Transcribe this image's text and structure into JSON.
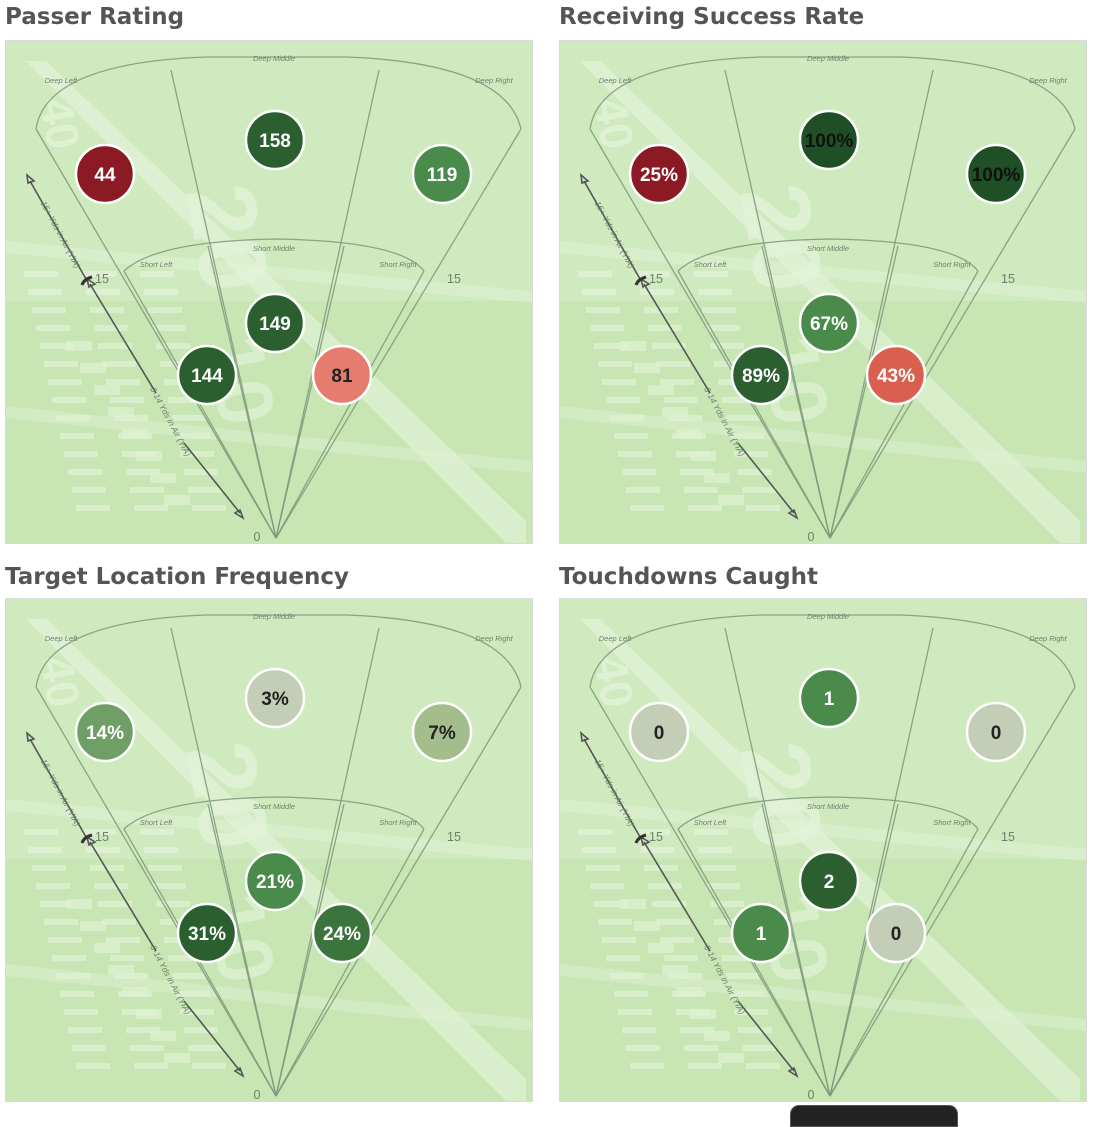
{
  "panels": [
    {
      "title": "Passer Rating",
      "zones": [
        {
          "zone": "Deep Left",
          "value": "44",
          "color": "#8b1a24",
          "text_color": "#ffffff"
        },
        {
          "zone": "Deep Middle",
          "value": "158",
          "color": "#2b5f2f",
          "text_color": "#ffffff"
        },
        {
          "zone": "Deep Right",
          "value": "119",
          "color": "#4a8a4a",
          "text_color": "#ffffff"
        },
        {
          "zone": "Short Left",
          "value": "144",
          "color": "#2b5f2f",
          "text_color": "#ffffff"
        },
        {
          "zone": "Short Middle",
          "value": "149",
          "color": "#2b5f2f",
          "text_color": "#ffffff"
        },
        {
          "zone": "Short Right",
          "value": "81",
          "color": "#e57c6e",
          "text_color": "#222222"
        }
      ]
    },
    {
      "title": "Receiving Success Rate",
      "zones": [
        {
          "zone": "Deep Left",
          "value": "25%",
          "color": "#8b1a24",
          "text_color": "#ffffff"
        },
        {
          "zone": "Deep Middle",
          "value": "100%",
          "color": "#1f4f24",
          "text_color": "#111111"
        },
        {
          "zone": "Deep Right",
          "value": "100%",
          "color": "#1f4f24",
          "text_color": "#111111"
        },
        {
          "zone": "Short Left",
          "value": "89%",
          "color": "#2b5f2f",
          "text_color": "#ffffff"
        },
        {
          "zone": "Short Middle",
          "value": "67%",
          "color": "#4a8a4a",
          "text_color": "#ffffff"
        },
        {
          "zone": "Short Right",
          "value": "43%",
          "color": "#d9604f",
          "text_color": "#ffffff"
        }
      ]
    },
    {
      "title": "Target Location Frequency",
      "zones": [
        {
          "zone": "Deep Left",
          "value": "14%",
          "color": "#6f9e66",
          "text_color": "#ffffff"
        },
        {
          "zone": "Deep Middle",
          "value": "3%",
          "color": "#c4cdb6",
          "text_color": "#222222"
        },
        {
          "zone": "Deep Right",
          "value": "7%",
          "color": "#a3bd8d",
          "text_color": "#222222"
        },
        {
          "zone": "Short Left",
          "value": "31%",
          "color": "#2b5f2f",
          "text_color": "#ffffff"
        },
        {
          "zone": "Short Middle",
          "value": "21%",
          "color": "#4a8a4a",
          "text_color": "#ffffff"
        },
        {
          "zone": "Short Right",
          "value": "24%",
          "color": "#3c743e",
          "text_color": "#ffffff"
        }
      ]
    },
    {
      "title": "Touchdowns Caught",
      "zones": [
        {
          "zone": "Deep Left",
          "value": "0",
          "color": "#c4cdb6",
          "text_color": "#222222"
        },
        {
          "zone": "Deep Middle",
          "value": "1",
          "color": "#4a8a4a",
          "text_color": "#ffffff"
        },
        {
          "zone": "Deep Right",
          "value": "0",
          "color": "#c4cdb6",
          "text_color": "#222222"
        },
        {
          "zone": "Short Left",
          "value": "1",
          "color": "#4a8a4a",
          "text_color": "#ffffff"
        },
        {
          "zone": "Short Middle",
          "value": "2",
          "color": "#2b5f2f",
          "text_color": "#ffffff"
        },
        {
          "zone": "Short Right",
          "value": "0",
          "color": "#c4cdb6",
          "text_color": "#222222"
        }
      ]
    }
  ],
  "field_labels": {
    "deep_left": "Deep Left",
    "deep_middle": "Deep Middle",
    "deep_right": "Deep Right",
    "short_left": "Short Left",
    "short_middle": "Short Middle",
    "short_right": "Short Right",
    "deep_axis": "15+ Yds in Air (YIA)",
    "short_axis": "0-14 Yds in Air (YIA)",
    "yard_15": "15",
    "yard_0": "0",
    "field_number_40": "40",
    "field_number_big": "20",
    "field_number_mid": "10"
  },
  "colors": {
    "field_green": "#c7e6b4",
    "field_green_light": "#d6edc6",
    "field_stripe": "#f4faee",
    "lines": "#7d967a"
  }
}
